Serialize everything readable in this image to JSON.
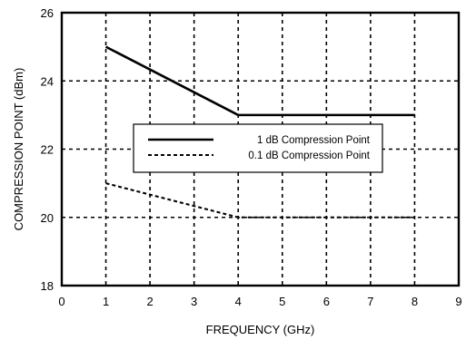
{
  "chart_data": {
    "type": "line",
    "title": "",
    "xlabel": "FREQUENCY (GHz)",
    "ylabel": "COMPRESSION POINT (dBm)",
    "xlim": [
      0,
      9
    ],
    "ylim": [
      18,
      26
    ],
    "x_ticks": [
      "0",
      "1",
      "2",
      "3",
      "4",
      "5",
      "6",
      "7",
      "8",
      "9"
    ],
    "y_ticks": [
      "18",
      "20",
      "22",
      "24",
      "26"
    ],
    "grid": true,
    "grid_style": "dashed",
    "legend_position": "center-left",
    "series": [
      {
        "name": "1 dB Compression Point",
        "line_style": "solid",
        "color": "#000000",
        "x": [
          1,
          4,
          8
        ],
        "y": [
          25,
          23,
          23
        ]
      },
      {
        "name": "0.1 dB Compression Point",
        "line_style": "dashed",
        "color": "#000000",
        "x": [
          1,
          4,
          8
        ],
        "y": [
          21,
          20,
          20
        ]
      }
    ]
  }
}
